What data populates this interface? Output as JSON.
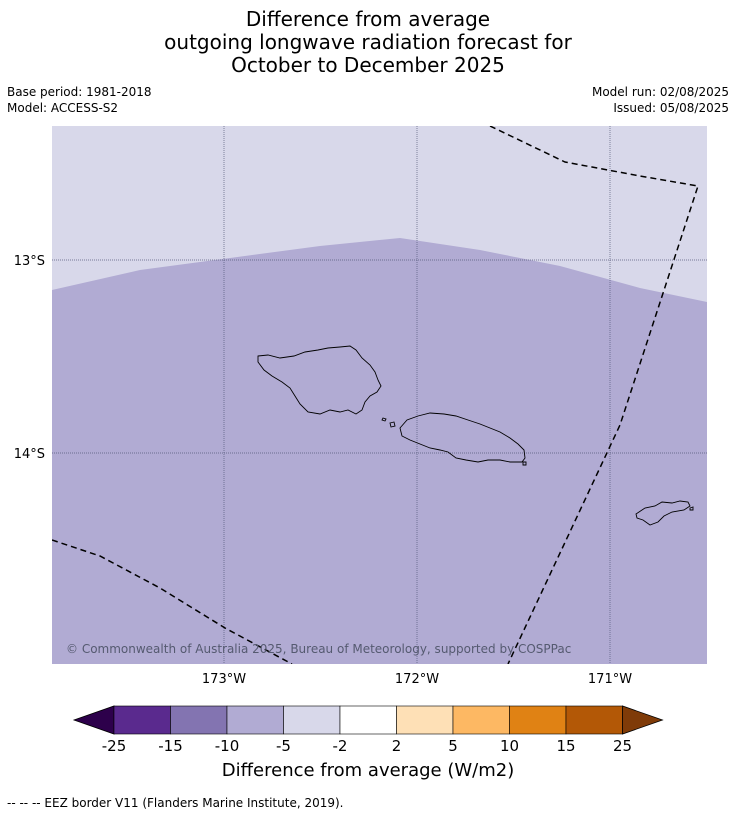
{
  "title": {
    "line1": "Difference from average",
    "line2": "outgoing longwave radiation forecast for",
    "line3": "October to December 2025"
  },
  "meta": {
    "base_period": "Base period: 1981-2018",
    "model": "Model: ACCESS-S2",
    "model_run": "Model run: 02/08/2025",
    "issued": "Issued: 05/08/2025"
  },
  "map": {
    "copyright": "© Commonwealth of Australia 2025, Bureau of Meteorology, supported by COSPPac",
    "lat_labels": [
      "13°S",
      "14°S"
    ],
    "lon_labels": [
      "173°W",
      "172°W",
      "171°W"
    ],
    "region_colors": {
      "north": "#d8d8ea",
      "main": "#b1abd3"
    },
    "eez_color": "#000000",
    "coast_color": "#000000"
  },
  "colorbar": {
    "title": "Difference from average (W/m2)",
    "tick_labels": [
      "-25",
      "-15",
      "-10",
      "-5",
      "-2",
      "2",
      "5",
      "10",
      "15",
      "25"
    ],
    "colors": [
      "#5a2a8e",
      "#8374b1",
      "#b1abd3",
      "#d8d8ea",
      "#ffffff",
      "#fee0b6",
      "#fdb863",
      "#e08214",
      "#b35806"
    ],
    "under_color": "#2d004b",
    "over_color": "#7f3b08"
  },
  "footer": {
    "eez_note": "--  --  -- EEZ border V11 (Flanders Marine Institute, 2019)."
  }
}
